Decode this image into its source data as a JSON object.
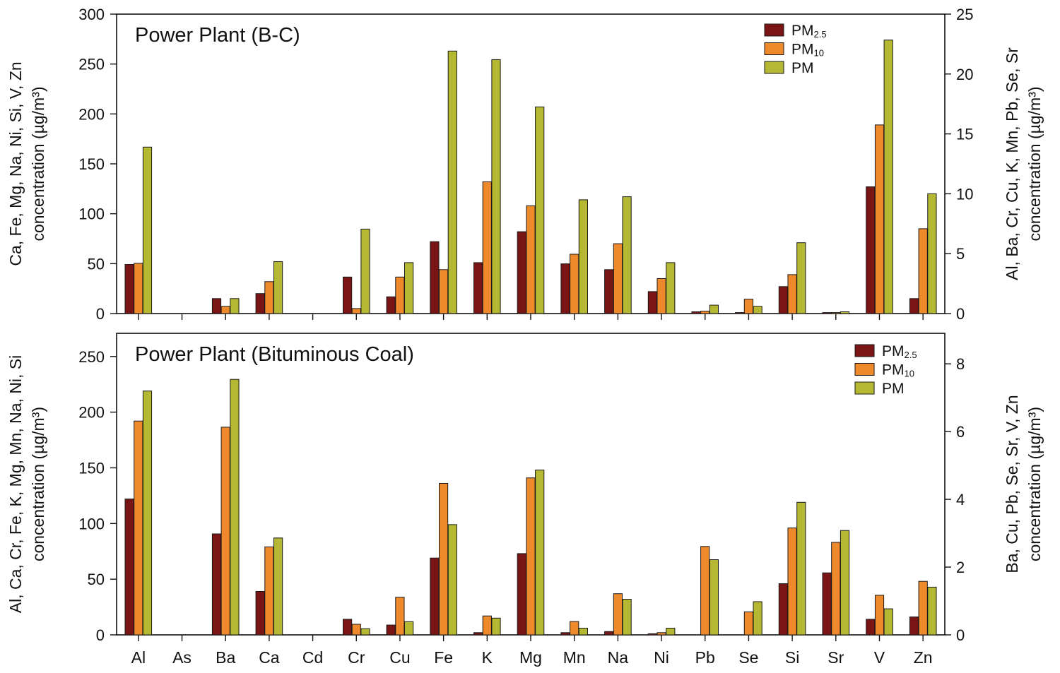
{
  "colors": {
    "pm25": "#7a1515",
    "pm10": "#ef8a2c",
    "pm": "#b5b832",
    "axis": "#111111",
    "bar_outline": "#1a1a1a"
  },
  "chart_data": [
    {
      "type": "bar",
      "title": "Power Plant (B-C)",
      "left_axis_label": [
        "Ca, Fe, Mg, Na, Ni, Si, V, Zn",
        "concentration (µg/m³)"
      ],
      "right_axis_label": [
        "Al, Ba, Cr, Cu, K, Mn, Pb, Se, Sr",
        "concentration (µg/m³)"
      ],
      "left_ylim": [
        0,
        300
      ],
      "left_ticks": [
        "0",
        "50",
        "100",
        "150",
        "200",
        "250",
        "300"
      ],
      "right_ylim": [
        0,
        25
      ],
      "right_ticks": [
        "0",
        "5",
        "10",
        "15",
        "20",
        "25"
      ],
      "left_axis_elements": [
        "Ca",
        "Fe",
        "Mg",
        "Na",
        "Ni",
        "Si",
        "V",
        "Zn"
      ],
      "right_axis_elements": [
        "Al",
        "Ba",
        "Cr",
        "Cu",
        "K",
        "Mn",
        "Pb",
        "Se",
        "Sr"
      ],
      "categories": [
        "Al",
        "As",
        "Ba",
        "Ca",
        "Cd",
        "Cr",
        "Cu",
        "Fe",
        "K",
        "Mg",
        "Mn",
        "Na",
        "Ni",
        "Pb",
        "Se",
        "Si",
        "Sr",
        "V",
        "Zn"
      ],
      "series": [
        {
          "name": "PM2.5",
          "sub": "2.5",
          "values": [
            4.1,
            0,
            1.25,
            20,
            0,
            3.05,
            1.4,
            72,
            4.25,
            82,
            4.15,
            44,
            22,
            0.15,
            0.08,
            27,
            0.08,
            127,
            15
          ]
        },
        {
          "name": "PM10",
          "sub": "10",
          "values": [
            4.2,
            0,
            0.6,
            32,
            0,
            0.42,
            3.05,
            44,
            11.0,
            108,
            4.95,
            70,
            35,
            0.2,
            1.2,
            39,
            0.08,
            189,
            85
          ]
        },
        {
          "name": "PM",
          "values": [
            13.9,
            0,
            1.25,
            52,
            0,
            7.05,
            4.25,
            263,
            21.2,
            207,
            9.5,
            117,
            51,
            0.7,
            0.6,
            71,
            0.15,
            274,
            120
          ]
        }
      ],
      "legend": {
        "position": "top-right"
      }
    },
    {
      "type": "bar",
      "title": "Power Plant (Bituminous Coal)",
      "left_axis_label": [
        "Al, Ca, Cr, Fe, K, Mg, Mn, Na, Ni, Si",
        "concentration (µg/m³)"
      ],
      "right_axis_label": [
        "Ba, Cu, Pb, Se, Sr, V, Zn",
        "concentration (µg/m³)"
      ],
      "left_ylim": [
        0,
        260
      ],
      "left_ticks": [
        "0",
        "50",
        "100",
        "150",
        "200",
        "250"
      ],
      "right_ylim": [
        0,
        8.9
      ],
      "right_ticks": [
        "0",
        "2",
        "4",
        "6",
        "8"
      ],
      "left_axis_elements": [
        "Al",
        "Ca",
        "Cr",
        "Fe",
        "K",
        "Mg",
        "Mn",
        "Na",
        "Ni",
        "Si"
      ],
      "right_axis_elements": [
        "Ba",
        "Cu",
        "Pb",
        "Se",
        "Sr",
        "V",
        "Zn"
      ],
      "categories": [
        "Al",
        "As",
        "Ba",
        "Ca",
        "Cd",
        "Cr",
        "Cu",
        "Fe",
        "K",
        "Mg",
        "Mn",
        "Na",
        "Ni",
        "Pb",
        "Se",
        "Si",
        "Sr",
        "V",
        "Zn"
      ],
      "series": [
        {
          "name": "PM2.5",
          "sub": "2.5",
          "values": [
            122,
            0,
            2.98,
            39,
            0,
            14,
            0.29,
            69,
            2,
            73,
            2,
            3,
            1,
            0,
            0,
            46,
            1.83,
            0.46,
            0.53
          ]
        },
        {
          "name": "PM10",
          "sub": "10",
          "values": [
            192,
            0,
            6.13,
            79,
            0,
            9.5,
            1.11,
            136,
            17,
            141,
            12,
            37,
            2,
            2.61,
            0.68,
            96,
            2.73,
            1.17,
            1.58
          ]
        },
        {
          "name": "PM",
          "values": [
            219,
            0,
            7.54,
            87,
            0,
            5.5,
            0.39,
            99,
            15,
            148,
            6,
            32,
            6,
            2.22,
            0.98,
            119,
            3.08,
            0.77,
            1.41
          ]
        }
      ],
      "legend": {
        "position": "top-right"
      }
    }
  ]
}
